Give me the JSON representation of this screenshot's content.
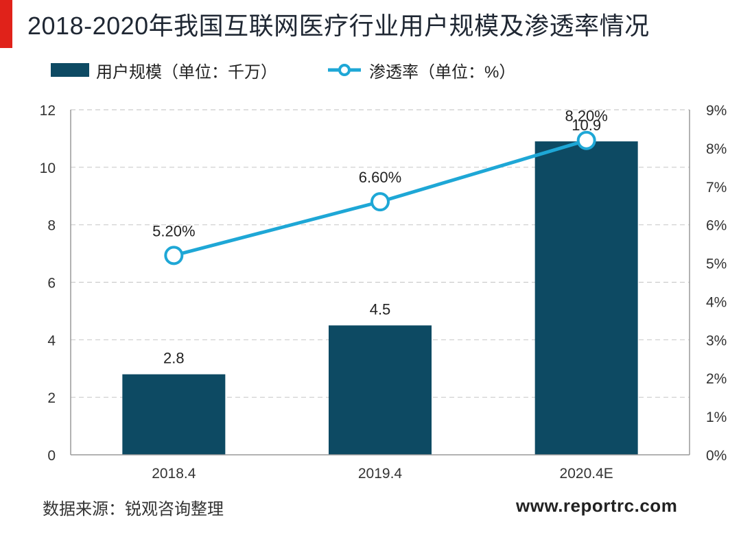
{
  "header": {
    "title": "2018-2020年我国互联网医疗行业用户规模及渗透率情况"
  },
  "legend": {
    "bar_label": "用户规模（单位：千万）",
    "line_label": "渗透率（单位：%）"
  },
  "footer": {
    "source": "数据来源：锐观咨询整理",
    "website": "www.reportrc.com"
  },
  "colors": {
    "bar": "#0d4a63",
    "line": "#1ea7d6",
    "grid": "#cccccc",
    "accent": "#e0221a"
  },
  "chart_data": {
    "type": "bar",
    "title": "2018-2020年我国互联网医疗行业用户规模及渗透率情况",
    "categories": [
      "2018.4",
      "2019.4",
      "2020.4E"
    ],
    "series": [
      {
        "name": "用户规模（单位：千万）",
        "type": "bar",
        "axis": "left",
        "values": [
          2.8,
          4.5,
          10.9
        ],
        "labels": [
          "2.8",
          "4.5",
          "10.9"
        ]
      },
      {
        "name": "渗透率（单位：%）",
        "type": "line",
        "axis": "right",
        "values": [
          5.2,
          6.6,
          8.2
        ],
        "labels": [
          "5.20%",
          "6.60%",
          "8.20%"
        ]
      }
    ],
    "y_left": {
      "min": 0,
      "max": 12,
      "ticks": [
        "0",
        "2",
        "4",
        "6",
        "8",
        "10",
        "12"
      ]
    },
    "y_right": {
      "min": 0,
      "max": 9,
      "ticks": [
        "0%",
        "1%",
        "2%",
        "3%",
        "4%",
        "5%",
        "6%",
        "7%",
        "8%",
        "9%"
      ]
    },
    "grid": true,
    "legend_position": "top-left"
  }
}
